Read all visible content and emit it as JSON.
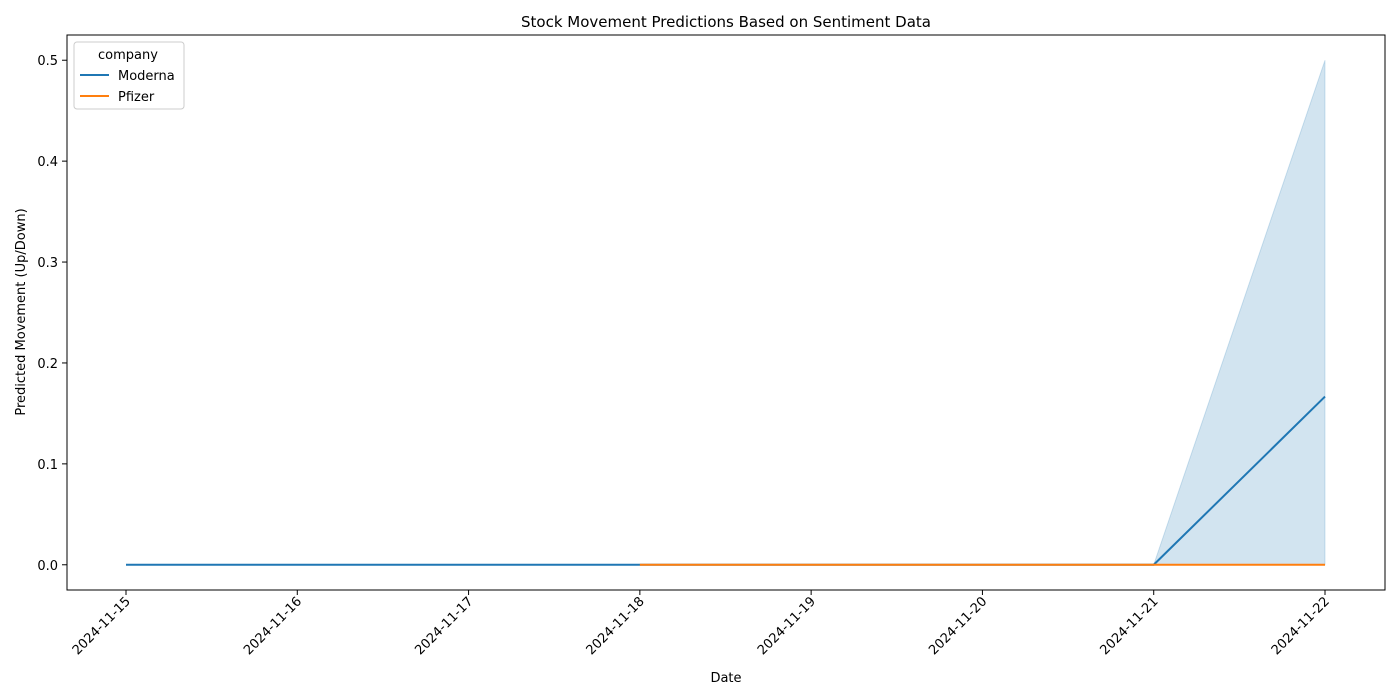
{
  "chart_data": {
    "type": "line",
    "title": "Stock Movement Predictions Based on Sentiment Data",
    "xlabel": "Date",
    "ylabel": "Predicted Movement (Up/Down)",
    "x_ticks": [
      "2024-11-15",
      "2024-11-16",
      "2024-11-17",
      "2024-11-18",
      "2024-11-19",
      "2024-11-20",
      "2024-11-21",
      "2024-11-22"
    ],
    "y_ticks": [
      "0.0",
      "0.1",
      "0.2",
      "0.3",
      "0.4",
      "0.5"
    ],
    "ylim": [
      -0.025,
      0.525
    ],
    "grid": false,
    "legend": {
      "title": "company",
      "placement": "top-left"
    },
    "series": [
      {
        "name": "Moderna",
        "color": "#1f77b4",
        "points": [
          {
            "x": "2024-11-15",
            "y": 0.0
          },
          {
            "x": "2024-11-18",
            "y": 0.0
          },
          {
            "x": "2024-11-21",
            "y": 0.0
          },
          {
            "x": "2024-11-22",
            "y": 0.1667
          }
        ],
        "confidence_band": [
          {
            "x": "2024-11-21",
            "low": 0.0,
            "high": 0.0
          },
          {
            "x": "2024-11-22",
            "low": 0.0,
            "high": 0.5
          }
        ]
      },
      {
        "name": "Pfizer",
        "color": "#ff7f0e",
        "points": [
          {
            "x": "2024-11-18",
            "y": 0.0
          },
          {
            "x": "2024-11-21",
            "y": 0.0
          },
          {
            "x": "2024-11-22",
            "y": 0.0
          }
        ]
      }
    ]
  }
}
